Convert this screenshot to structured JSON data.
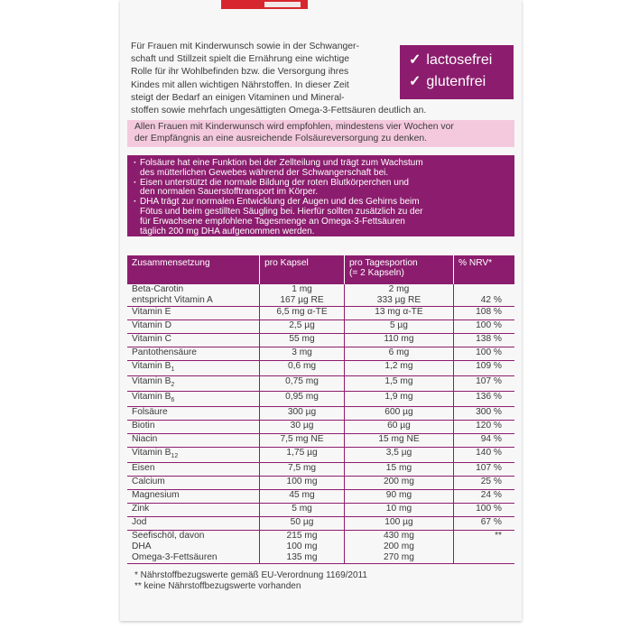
{
  "intro": {
    "lines": [
      "Für Frauen mit Kinderwunsch sowie in der Schwanger-",
      "schaft und Stillzeit spielt die Ernährung eine wichtige",
      "Rolle für ihr Wohlbefinden bzw. die Versorgung ihres",
      "Kindes mit allen wichtigen Nährstoffen. In dieser Zeit",
      "steigt der Bedarf an einigen Vitaminen und Mineral-",
      "stoffen sowie mehrfach ungesättigten Omega-3-Fettsäuren deutlich an."
    ]
  },
  "badges": [
    "lactosefrei",
    "glutenfrei"
  ],
  "recommendation": {
    "lines": [
      "Allen Frauen mit Kinderwunsch wird empfohlen, mindestens vier Wochen vor",
      "der Empfängnis an eine ausreichende Folsäureversorgung zu denken."
    ]
  },
  "claims": [
    {
      "lines": [
        "Folsäure hat eine Funktion bei der Zellteilung und trägt zum Wachstum",
        "des mütterlichen Gewebes während der Schwangerschaft bei."
      ]
    },
    {
      "lines": [
        "Eisen unterstützt die normale Bildung der roten Blutkörperchen und",
        "den normalen Sauerstofftransport im Körper."
      ]
    },
    {
      "lines": [
        "DHA trägt zur normalen Entwicklung der Augen und des Gehirns beim",
        "Fötus und beim gestillten Säugling bei. Hierfür sollten zusätzlich zu der",
        "für Erwachsene empfohlene Tagesmenge an Omega-3-Fettsäuren",
        "täglich 200 mg DHA aufgenommen werden."
      ]
    }
  ],
  "table": {
    "header": [
      [
        "Zusammensetzung"
      ],
      [
        "pro Kapsel"
      ],
      [
        "pro Tagesportion",
        "(= 2 Kapseln)"
      ],
      [
        "% NRV*"
      ]
    ],
    "rows": [
      {
        "name": [
          "Beta-Carotin",
          "entspricht Vitamin A"
        ],
        "kapsel": [
          "1 mg",
          "167 µg RE"
        ],
        "tages": [
          "2 mg",
          "333 µg RE"
        ],
        "nrv": [
          null,
          "42 %"
        ]
      },
      {
        "name": [
          "Vitamin E"
        ],
        "kapsel": [
          "6,5 mg α-TE"
        ],
        "tages": [
          "13 mg α-TE"
        ],
        "nrv": [
          "108 %"
        ]
      },
      {
        "name": [
          "Vitamin D"
        ],
        "kapsel": [
          "2,5 µg"
        ],
        "tages": [
          "5 µg"
        ],
        "nrv": [
          "100 %"
        ]
      },
      {
        "name": [
          "Vitamin C"
        ],
        "kapsel": [
          "55 mg"
        ],
        "tages": [
          "110 mg"
        ],
        "nrv": [
          "138 %"
        ]
      },
      {
        "name": [
          "Pantothensäure"
        ],
        "kapsel": [
          "3 mg"
        ],
        "tages": [
          "6 mg"
        ],
        "nrv": [
          "100 %"
        ]
      },
      {
        "name": [
          "Vitamin B"
        ],
        "sub": "1",
        "kapsel": [
          "0,6 mg"
        ],
        "tages": [
          "1,2 mg"
        ],
        "nrv": [
          "109 %"
        ]
      },
      {
        "name": [
          "Vitamin B"
        ],
        "sub": "2",
        "kapsel": [
          "0,75 mg"
        ],
        "tages": [
          "1,5 mg"
        ],
        "nrv": [
          "107 %"
        ]
      },
      {
        "name": [
          "Vitamin B"
        ],
        "sub": "6",
        "kapsel": [
          "0,95 mg"
        ],
        "tages": [
          "1,9 mg"
        ],
        "nrv": [
          "136 %"
        ]
      },
      {
        "name": [
          "Folsäure"
        ],
        "kapsel": [
          "300 µg"
        ],
        "tages": [
          "600 µg"
        ],
        "nrv": [
          "300 %"
        ]
      },
      {
        "name": [
          "Biotin"
        ],
        "kapsel": [
          "30 µg"
        ],
        "tages": [
          "60 µg"
        ],
        "nrv": [
          "120 %"
        ]
      },
      {
        "name": [
          "Niacin"
        ],
        "kapsel": [
          "7,5 mg NE"
        ],
        "tages": [
          "15 mg NE"
        ],
        "nrv": [
          "94 %"
        ]
      },
      {
        "name": [
          "Vitamin B"
        ],
        "sub": "12",
        "kapsel": [
          "1,75 µg"
        ],
        "tages": [
          "3,5 µg"
        ],
        "nrv": [
          "140 %"
        ]
      },
      {
        "name": [
          "Eisen"
        ],
        "kapsel": [
          "7,5 mg"
        ],
        "tages": [
          "15 mg"
        ],
        "nrv": [
          "107 %"
        ]
      },
      {
        "name": [
          "Calcium"
        ],
        "kapsel": [
          "100 mg"
        ],
        "tages": [
          "200 mg"
        ],
        "nrv": [
          "25 %"
        ]
      },
      {
        "name": [
          "Magnesium"
        ],
        "kapsel": [
          "45 mg"
        ],
        "tages": [
          "90 mg"
        ],
        "nrv": [
          "24 %"
        ]
      },
      {
        "name": [
          "Zink"
        ],
        "kapsel": [
          "5 mg"
        ],
        "tages": [
          "10 mg"
        ],
        "nrv": [
          "100 %"
        ]
      },
      {
        "name": [
          "Jod"
        ],
        "kapsel": [
          "50 µg"
        ],
        "tages": [
          "100 µg"
        ],
        "nrv": [
          "67 %"
        ]
      },
      {
        "name": [
          "Seefischöl, davon",
          "DHA",
          "Omega-3-Fettsäuren"
        ],
        "kapsel": [
          "215 mg",
          "100 mg",
          "135 mg"
        ],
        "tages": [
          "430 mg",
          "200 mg",
          "270 mg"
        ],
        "nrv": [
          "**"
        ]
      }
    ]
  },
  "footnotes": [
    "* Nährstoffbezugswerte gemäß EU-Verordnung 1169/2011",
    "** keine Nährstoffbezugswerte vorhanden"
  ]
}
